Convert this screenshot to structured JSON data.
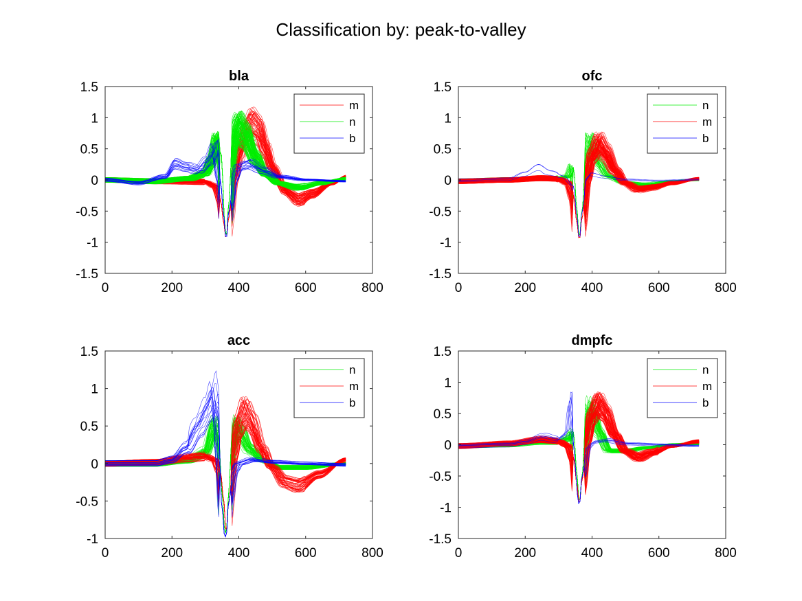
{
  "figure": {
    "suptitle": "Classification by: peak-to-valley"
  },
  "colors": {
    "n": "#00ee00",
    "m": "#ff0000",
    "b": "#0000ff",
    "axis": "#262626",
    "background": "#ffffff"
  },
  "chart_data": [
    {
      "type": "line",
      "title": "bla",
      "xlabel": "",
      "ylabel": "",
      "xlim": [
        0,
        800
      ],
      "ylim": [
        -1.5,
        1.5
      ],
      "xticks": [
        0,
        200,
        400,
        600,
        800
      ],
      "yticks": [
        -1.5,
        -1,
        -0.5,
        0,
        0.5,
        1,
        1.5
      ],
      "xticklabels": [
        "0",
        "200",
        "400",
        "600",
        "800"
      ],
      "yticklabels": [
        "-1.5",
        "-1",
        "-0.5",
        "0",
        "0.5",
        "1",
        "1.5"
      ],
      "legend_position": "top-right",
      "legend": [
        {
          "name": "m",
          "color": "#ff0000"
        },
        {
          "name": "n",
          "color": "#00ee00"
        },
        {
          "name": "b",
          "color": "#0000ff"
        }
      ],
      "series": [
        {
          "name": "m",
          "color": "#ff0000",
          "count": 60,
          "x": [
            0,
            150,
            300,
            330,
            345,
            355,
            362,
            370,
            385,
            400,
            420,
            440,
            460,
            480,
            500,
            540,
            580,
            620,
            680,
            720
          ],
          "y": [
            0,
            -0.02,
            -0.03,
            -0.1,
            -0.3,
            -0.7,
            -0.96,
            -0.6,
            0.0,
            0.4,
            0.75,
            0.9,
            0.8,
            0.5,
            0.2,
            -0.18,
            -0.32,
            -0.22,
            -0.05,
            0.05
          ]
        },
        {
          "name": "n",
          "color": "#00ee00",
          "count": 120,
          "x": [
            0,
            150,
            250,
            300,
            320,
            335,
            348,
            357,
            362,
            370,
            378,
            390,
            400,
            420,
            450,
            480,
            520,
            580,
            650,
            720
          ],
          "y": [
            0,
            -0.02,
            0.02,
            0.1,
            0.3,
            0.6,
            0.4,
            -0.6,
            -0.97,
            -0.4,
            0.3,
            0.75,
            0.85,
            0.7,
            0.35,
            0.1,
            -0.05,
            -0.12,
            -0.05,
            0.02
          ]
        },
        {
          "name": "b",
          "color": "#0000ff",
          "count": 16,
          "x": [
            0,
            100,
            180,
            210,
            240,
            280,
            310,
            330,
            345,
            355,
            362,
            370,
            385,
            400,
            430,
            470,
            520,
            600,
            720
          ],
          "y": [
            0,
            -0.05,
            0.05,
            0.25,
            0.2,
            0.15,
            0.3,
            0.5,
            0.0,
            -0.6,
            -0.98,
            -0.5,
            0.0,
            0.2,
            0.25,
            0.15,
            0.05,
            0.0,
            -0.02
          ]
        }
      ]
    },
    {
      "type": "line",
      "title": "ofc",
      "xlabel": "",
      "ylabel": "",
      "xlim": [
        0,
        800
      ],
      "ylim": [
        -1.5,
        1.5
      ],
      "xticks": [
        0,
        200,
        400,
        600,
        800
      ],
      "yticks": [
        -1.5,
        -1,
        -0.5,
        0,
        0.5,
        1,
        1.5
      ],
      "xticklabels": [
        "0",
        "200",
        "400",
        "600",
        "800"
      ],
      "yticklabels": [
        "-1.5",
        "-1",
        "-0.5",
        "0",
        "0.5",
        "1",
        "1.5"
      ],
      "legend_position": "top-right",
      "legend": [
        {
          "name": "n",
          "color": "#00ee00"
        },
        {
          "name": "m",
          "color": "#ff0000"
        },
        {
          "name": "b",
          "color": "#0000ff"
        }
      ],
      "series": [
        {
          "name": "n",
          "color": "#00ee00",
          "count": 35,
          "x": [
            0,
            150,
            250,
            300,
            330,
            345,
            355,
            362,
            370,
            380,
            392,
            405,
            420,
            450,
            500,
            560,
            640,
            720
          ],
          "y": [
            -0.02,
            0.0,
            0.02,
            0.02,
            0.05,
            0.2,
            -0.5,
            -0.95,
            -0.5,
            0.2,
            0.6,
            0.45,
            0.25,
            0.05,
            -0.05,
            -0.08,
            -0.03,
            0.0
          ]
        },
        {
          "name": "m",
          "color": "#ff0000",
          "count": 90,
          "x": [
            0,
            150,
            250,
            300,
            330,
            345,
            355,
            362,
            370,
            385,
            400,
            420,
            440,
            470,
            500,
            540,
            580,
            640,
            720
          ],
          "y": [
            -0.02,
            0.0,
            0.03,
            0.02,
            -0.05,
            -0.25,
            -0.7,
            -0.98,
            -0.6,
            0.0,
            0.4,
            0.6,
            0.45,
            0.15,
            -0.05,
            -0.15,
            -0.12,
            -0.05,
            0.02
          ]
        },
        {
          "name": "b",
          "color": "#0000ff",
          "count": 3,
          "x": [
            0,
            150,
            200,
            240,
            280,
            320,
            345,
            355,
            362,
            370,
            385,
            400,
            440,
            500,
            600,
            720
          ],
          "y": [
            -0.02,
            0.0,
            0.1,
            0.22,
            0.12,
            0.05,
            -0.1,
            -0.6,
            -0.98,
            -0.5,
            0.0,
            0.1,
            0.05,
            0.0,
            -0.02,
            0.0
          ]
        }
      ]
    },
    {
      "type": "line",
      "title": "acc",
      "xlabel": "",
      "ylabel": "",
      "xlim": [
        0,
        800
      ],
      "ylim": [
        -1,
        1.5
      ],
      "xticks": [
        0,
        200,
        400,
        600,
        800
      ],
      "yticks": [
        -1,
        -0.5,
        0,
        0.5,
        1,
        1.5
      ],
      "xticklabels": [
        "0",
        "200",
        "400",
        "600",
        "800"
      ],
      "yticklabels": [
        "-1",
        "-0.5",
        "0",
        "0.5",
        "1",
        "1.5"
      ],
      "legend_position": "top-right",
      "legend": [
        {
          "name": "n",
          "color": "#00ee00"
        },
        {
          "name": "m",
          "color": "#ff0000"
        },
        {
          "name": "b",
          "color": "#0000ff"
        }
      ],
      "series": [
        {
          "name": "n",
          "color": "#00ee00",
          "count": 60,
          "x": [
            0,
            150,
            250,
            300,
            325,
            340,
            350,
            357,
            362,
            368,
            378,
            390,
            405,
            430,
            470,
            520,
            600,
            720
          ],
          "y": [
            0,
            0.0,
            0.05,
            0.15,
            0.5,
            0.3,
            -0.4,
            -0.85,
            -0.97,
            -0.5,
            0.2,
            0.5,
            0.4,
            0.2,
            0.05,
            -0.05,
            -0.05,
            0.0
          ]
        },
        {
          "name": "m",
          "color": "#ff0000",
          "count": 50,
          "x": [
            0,
            150,
            250,
            300,
            330,
            345,
            355,
            362,
            370,
            385,
            400,
            420,
            440,
            470,
            500,
            540,
            580,
            640,
            720
          ],
          "y": [
            0,
            0.02,
            0.08,
            0.1,
            0.05,
            -0.1,
            -0.5,
            -0.95,
            -0.5,
            0.1,
            0.5,
            0.7,
            0.55,
            0.2,
            -0.05,
            -0.25,
            -0.3,
            -0.15,
            0.05
          ]
        },
        {
          "name": "b",
          "color": "#0000ff",
          "count": 16,
          "x": [
            0,
            150,
            200,
            240,
            280,
            310,
            325,
            332,
            340,
            350,
            357,
            362,
            370,
            385,
            400,
            440,
            500,
            600,
            720
          ],
          "y": [
            0,
            0.0,
            0.05,
            0.2,
            0.5,
            0.75,
            0.95,
            0.8,
            0.2,
            -0.6,
            -0.95,
            -0.99,
            -0.5,
            -0.1,
            0.0,
            0.05,
            0.02,
            0.0,
            -0.02
          ]
        }
      ]
    },
    {
      "type": "line",
      "title": "dmpfc",
      "xlabel": "",
      "ylabel": "",
      "xlim": [
        0,
        800
      ],
      "ylim": [
        -1.5,
        1.5
      ],
      "xticks": [
        0,
        200,
        400,
        600,
        800
      ],
      "yticks": [
        -1.5,
        -1,
        -0.5,
        0,
        0.5,
        1,
        1.5
      ],
      "xticklabels": [
        "0",
        "200",
        "400",
        "600",
        "800"
      ],
      "yticklabels": [
        "-1.5",
        "-1",
        "-0.5",
        "0",
        "0.5",
        "1",
        "1.5"
      ],
      "legend_position": "top-right",
      "legend": [
        {
          "name": "n",
          "color": "#00ee00"
        },
        {
          "name": "m",
          "color": "#ff0000"
        },
        {
          "name": "b",
          "color": "#0000ff"
        }
      ],
      "series": [
        {
          "name": "n",
          "color": "#00ee00",
          "count": 50,
          "x": [
            0,
            150,
            250,
            300,
            330,
            345,
            355,
            362,
            370,
            380,
            392,
            405,
            420,
            450,
            500,
            560,
            640,
            720
          ],
          "y": [
            -0.02,
            0.0,
            0.05,
            0.05,
            0.1,
            0.2,
            -0.5,
            -0.95,
            -0.5,
            0.2,
            0.6,
            0.45,
            0.2,
            -0.1,
            -0.1,
            -0.05,
            0.0,
            0.02
          ]
        },
        {
          "name": "m",
          "color": "#ff0000",
          "count": 80,
          "x": [
            0,
            150,
            250,
            300,
            330,
            345,
            355,
            362,
            370,
            385,
            400,
            420,
            440,
            470,
            500,
            540,
            580,
            640,
            720
          ],
          "y": [
            -0.02,
            0.02,
            0.08,
            0.06,
            -0.02,
            -0.2,
            -0.65,
            -0.97,
            -0.55,
            0.05,
            0.45,
            0.65,
            0.5,
            0.15,
            -0.1,
            -0.2,
            -0.12,
            -0.02,
            0.05
          ]
        },
        {
          "name": "b",
          "color": "#0000ff",
          "count": 6,
          "x": [
            0,
            150,
            200,
            250,
            290,
            320,
            332,
            338,
            345,
            352,
            358,
            362,
            370,
            385,
            400,
            440,
            500,
            600,
            720
          ],
          "y": [
            -0.02,
            0.0,
            0.05,
            0.15,
            0.1,
            0.2,
            0.9,
            0.6,
            0.0,
            -0.5,
            -0.9,
            -0.98,
            -0.5,
            -0.05,
            0.05,
            0.08,
            0.02,
            0.0,
            -0.02
          ]
        }
      ]
    }
  ]
}
